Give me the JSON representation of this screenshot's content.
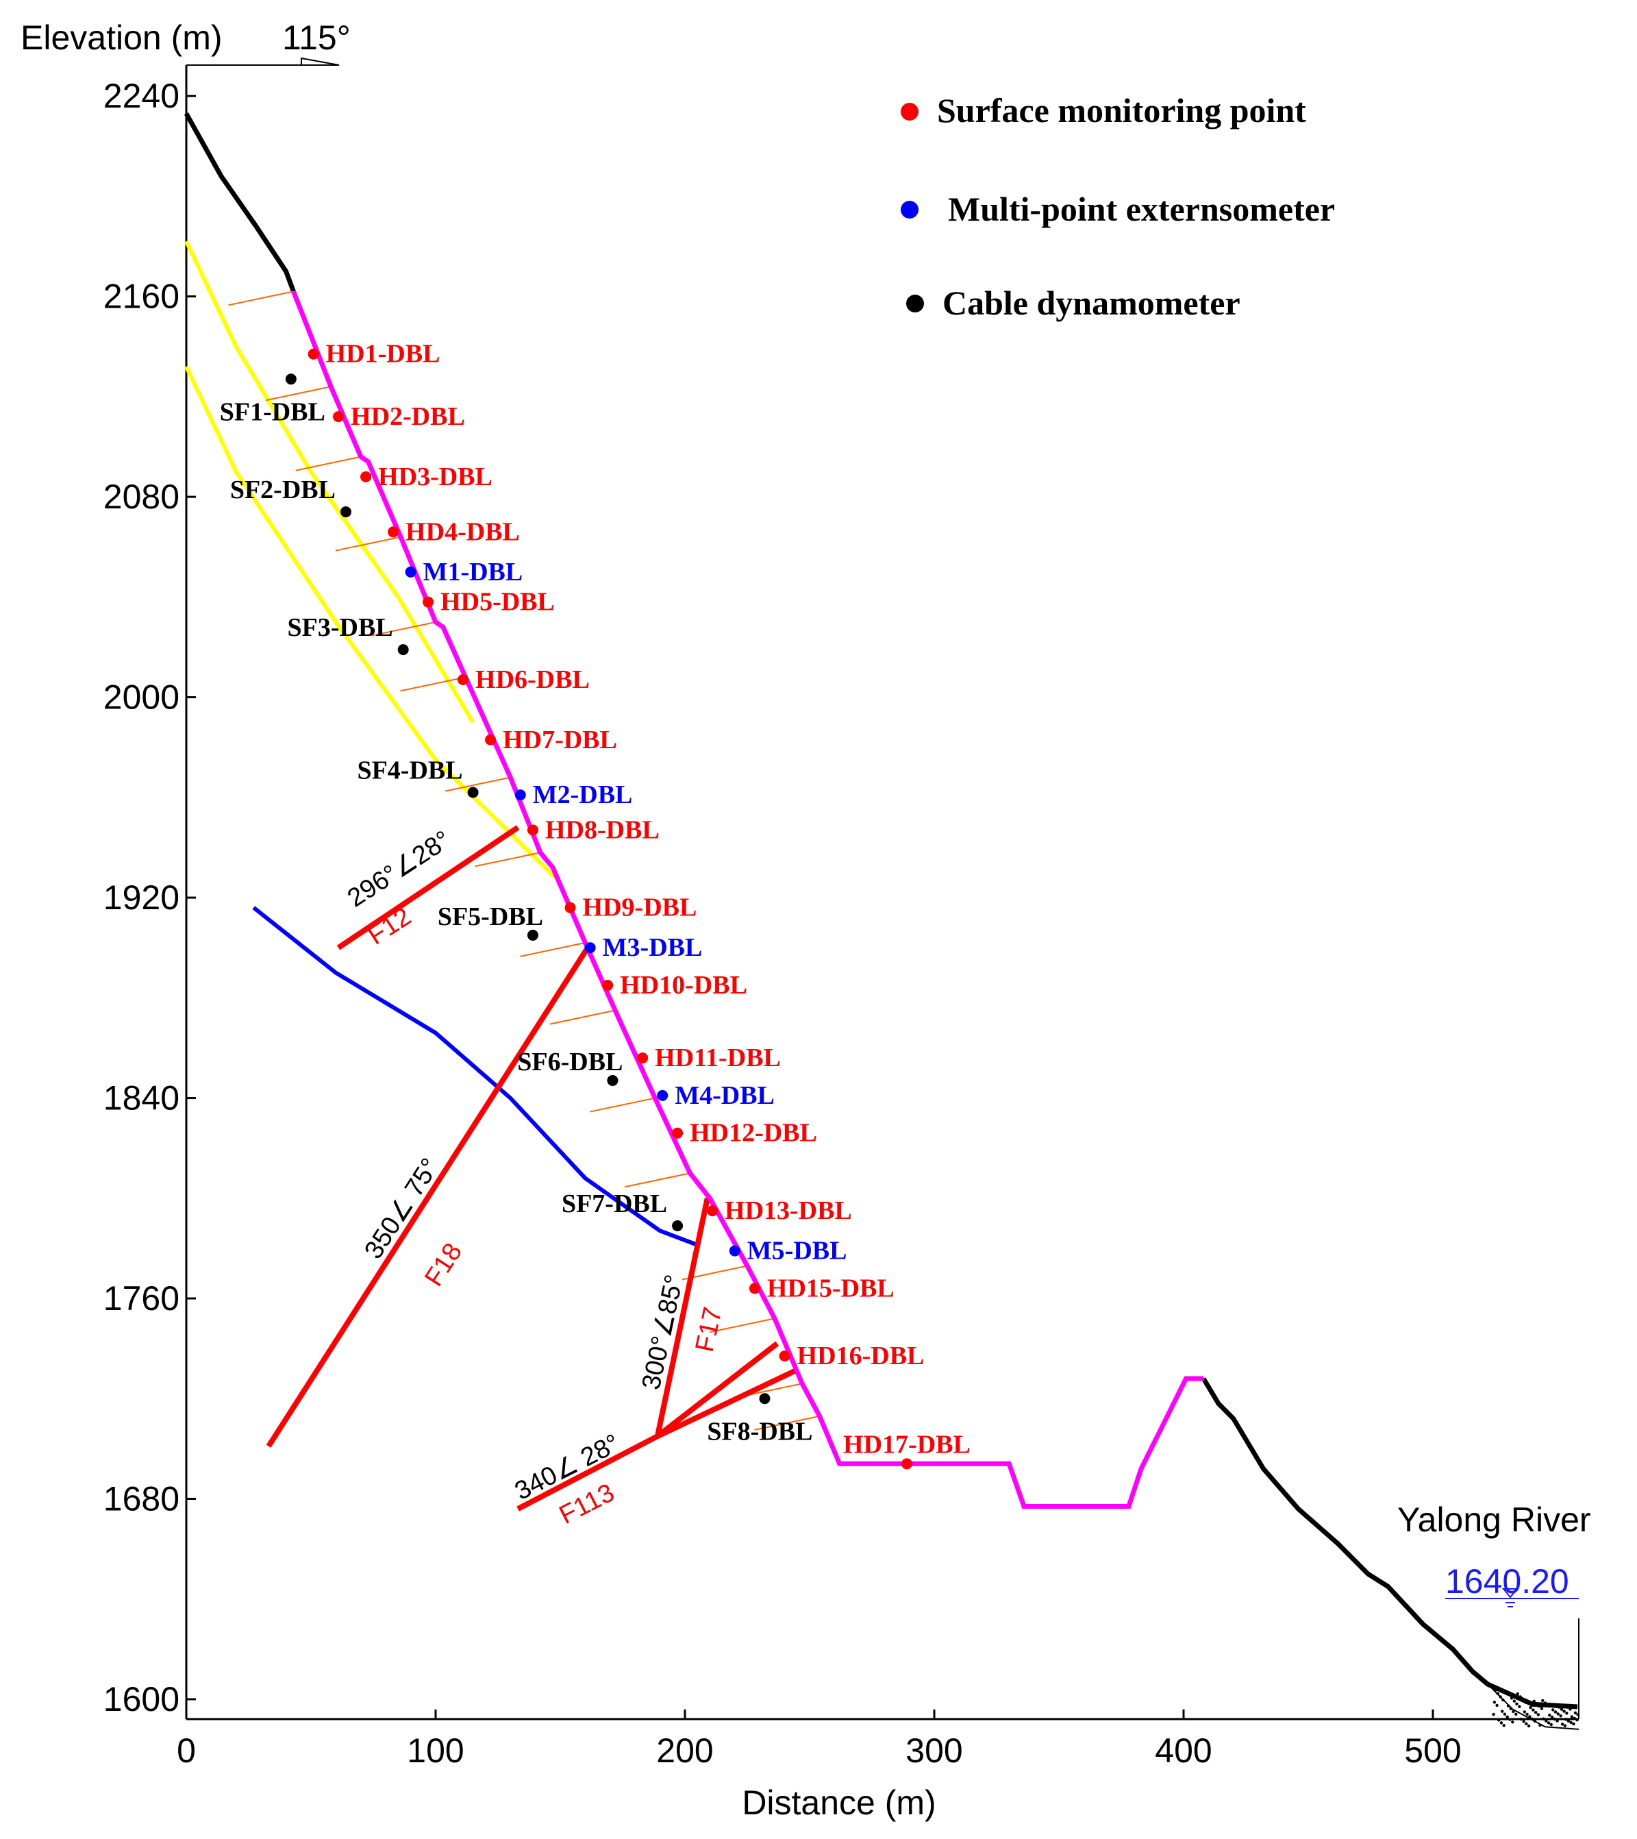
{
  "title_angle": "115°",
  "colors": {
    "surface": "#ff0000",
    "extensometer": "#0000ff",
    "cable": "#000000",
    "slope": "#ff00ff",
    "fault": "#ff0000",
    "yellow": "#ffff00",
    "blue_line": "#0000ff",
    "anchor": "#ff6600"
  },
  "legend": [
    {
      "label": "Surface monitoring point",
      "color": "#ff0000"
    },
    {
      "label": "Multi-point externsometer",
      "color": "#0000ff"
    },
    {
      "label": "Cable dynamometer",
      "color": "#000000"
    }
  ],
  "chart_data": {
    "type": "scatter",
    "xlabel": "Distance (m)",
    "ylabel": "Elevation (m)",
    "xlim": [
      0,
      560
    ],
    "ylim": [
      1595,
      2250
    ],
    "x_ticks": [
      0,
      100,
      200,
      300,
      400,
      500
    ],
    "y_ticks": [
      1600,
      1680,
      1760,
      1840,
      1920,
      2000,
      2080,
      2160,
      2240
    ],
    "river": {
      "name": "Yalong River",
      "level_label": "1640.20",
      "level": 1640.2
    },
    "points": [
      {
        "name": "HD1-DBL",
        "kind": "surface",
        "x": 51,
        "y": 2137
      },
      {
        "name": "HD2-DBL",
        "kind": "surface",
        "x": 61,
        "y": 2112
      },
      {
        "name": "HD3-DBL",
        "kind": "surface",
        "x": 72,
        "y": 2088
      },
      {
        "name": "HD4-DBL",
        "kind": "surface",
        "x": 83,
        "y": 2066
      },
      {
        "name": "M1-DBL",
        "kind": "extensometer",
        "x": 90,
        "y": 2050
      },
      {
        "name": "HD5-DBL",
        "kind": "surface",
        "x": 97,
        "y": 2038
      },
      {
        "name": "HD6-DBL",
        "kind": "surface",
        "x": 111,
        "y": 2007
      },
      {
        "name": "HD7-DBL",
        "kind": "surface",
        "x": 122,
        "y": 1983
      },
      {
        "name": "M2-DBL",
        "kind": "extensometer",
        "x": 134,
        "y": 1961
      },
      {
        "name": "HD8-DBL",
        "kind": "surface",
        "x": 139,
        "y": 1947
      },
      {
        "name": "HD9-DBL",
        "kind": "surface",
        "x": 154,
        "y": 1916
      },
      {
        "name": "M3-DBL",
        "kind": "extensometer",
        "x": 162,
        "y": 1900
      },
      {
        "name": "HD10-DBL",
        "kind": "surface",
        "x": 169,
        "y": 1885
      },
      {
        "name": "HD11-DBL",
        "kind": "surface",
        "x": 183,
        "y": 1856
      },
      {
        "name": "M4-DBL",
        "kind": "extensometer",
        "x": 191,
        "y": 1841
      },
      {
        "name": "HD12-DBL",
        "kind": "surface",
        "x": 197,
        "y": 1826
      },
      {
        "name": "HD13-DBL",
        "kind": "surface",
        "x": 211,
        "y": 1795
      },
      {
        "name": "M5-DBL",
        "kind": "extensometer",
        "x": 220,
        "y": 1779
      },
      {
        "name": "HD15-DBL",
        "kind": "surface",
        "x": 228,
        "y": 1764
      },
      {
        "name": "HD16-DBL",
        "kind": "surface",
        "x": 240,
        "y": 1737
      },
      {
        "name": "HD17-DBL",
        "kind": "surface",
        "x": 289,
        "y": 1694
      },
      {
        "name": "SF1-DBL",
        "kind": "cable",
        "x": 42,
        "y": 2127
      },
      {
        "name": "SF2-DBL",
        "kind": "cable",
        "x": 64,
        "y": 2074
      },
      {
        "name": "SF3-DBL",
        "kind": "cable",
        "x": 87,
        "y": 2019
      },
      {
        "name": "SF4-DBL",
        "kind": "cable",
        "x": 115,
        "y": 1962
      },
      {
        "name": "SF5-DBL",
        "kind": "cable",
        "x": 139,
        "y": 1905
      },
      {
        "name": "SF6-DBL",
        "kind": "cable",
        "x": 171,
        "y": 1847
      },
      {
        "name": "SF7-DBL",
        "kind": "cable",
        "x": 197,
        "y": 1789
      },
      {
        "name": "SF8-DBL",
        "kind": "cable",
        "x": 232,
        "y": 1720
      }
    ],
    "faults": [
      {
        "name": "F12",
        "orientation": "296°∠28°",
        "from": [
          61,
          1900
        ],
        "to": [
          133,
          1948
        ]
      },
      {
        "name": "F18",
        "orientation": "350∠ 75°",
        "from": [
          33,
          1701
        ],
        "to": [
          161,
          1900
        ]
      },
      {
        "name": "F17",
        "orientation": "300°∠85°",
        "from": [
          189,
          1705
        ],
        "to": [
          209,
          1800
        ]
      },
      {
        "name": "F113",
        "orientation": "340∠ 28°",
        "from": [
          133,
          1676
        ],
        "to": [
          189,
          1705
        ]
      },
      {
        "name": "",
        "orientation": "",
        "from": [
          189,
          1705
        ],
        "to": [
          237,
          1742
        ]
      },
      {
        "name": "",
        "orientation": "",
        "from": [
          189,
          1705
        ],
        "to": [
          244,
          1731
        ]
      }
    ],
    "surface_upper_black": [
      [
        0,
        2233
      ],
      [
        14,
        2208
      ],
      [
        28,
        2188
      ],
      [
        40,
        2170
      ],
      [
        43,
        2162
      ]
    ],
    "slope_profile": [
      [
        43,
        2162
      ],
      [
        58,
        2124
      ],
      [
        70,
        2096
      ],
      [
        73,
        2094
      ],
      [
        86,
        2064
      ],
      [
        100,
        2030
      ],
      [
        103,
        2028
      ],
      [
        112,
        2008
      ],
      [
        130,
        1968
      ],
      [
        142,
        1938
      ],
      [
        147,
        1932
      ],
      [
        160,
        1902
      ],
      [
        172,
        1875
      ],
      [
        188,
        1840
      ],
      [
        202,
        1810
      ],
      [
        210,
        1800
      ],
      [
        225,
        1773
      ],
      [
        236,
        1752
      ],
      [
        247,
        1726
      ],
      [
        254,
        1713
      ],
      [
        262,
        1694
      ],
      [
        330,
        1694
      ],
      [
        336,
        1677
      ],
      [
        378,
        1677
      ],
      [
        383,
        1692
      ],
      [
        393,
        1712
      ],
      [
        401,
        1728
      ],
      [
        408,
        1728
      ]
    ],
    "surface_lower_black": [
      [
        408,
        1728
      ],
      [
        414,
        1718
      ],
      [
        420,
        1712
      ],
      [
        432,
        1692
      ],
      [
        446,
        1676
      ],
      [
        462,
        1662
      ],
      [
        474,
        1650
      ],
      [
        482,
        1645
      ],
      [
        496,
        1630
      ],
      [
        508,
        1620
      ],
      [
        516,
        1611
      ],
      [
        522,
        1606
      ],
      [
        540,
        1598
      ],
      [
        558,
        1597
      ]
    ],
    "yellow_lines": [
      [
        [
          0,
          2182
        ],
        [
          20,
          2140
        ],
        [
          50,
          2090
        ],
        [
          85,
          2040
        ],
        [
          115,
          1990
        ]
      ],
      [
        [
          0,
          2132
        ],
        [
          20,
          2090
        ],
        [
          60,
          2030
        ],
        [
          100,
          1975
        ],
        [
          148,
          1928
        ]
      ]
    ],
    "blue_line": [
      [
        27,
        1916
      ],
      [
        60,
        1890
      ],
      [
        100,
        1866
      ],
      [
        130,
        1840
      ],
      [
        160,
        1808
      ],
      [
        190,
        1787
      ],
      [
        206,
        1781
      ]
    ]
  }
}
